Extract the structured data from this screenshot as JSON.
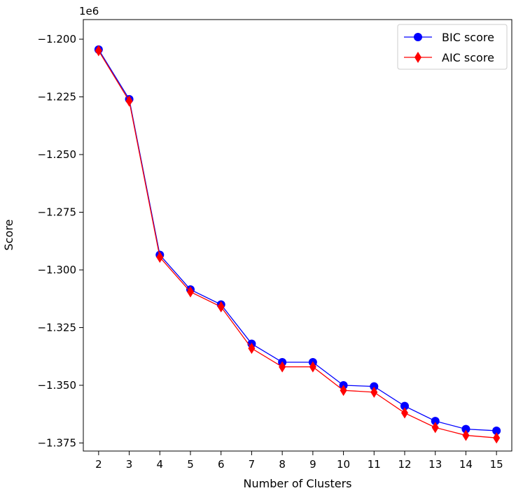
{
  "chart_data": {
    "type": "line",
    "xlabel": "Number of Clusters",
    "ylabel": "Score",
    "y_offset_label": "1e6",
    "x": [
      2,
      3,
      4,
      5,
      6,
      7,
      8,
      9,
      10,
      11,
      12,
      13,
      14,
      15
    ],
    "xlim": [
      1.5,
      15.5
    ],
    "ylim": [
      -1.3785,
      -1.1915
    ],
    "y_ticks": [
      -1.2,
      -1.225,
      -1.25,
      -1.275,
      -1.3,
      -1.325,
      -1.35,
      -1.375
    ],
    "y_tick_labels": [
      "−1.200",
      "−1.225",
      "−1.250",
      "−1.275",
      "−1.300",
      "−1.325",
      "−1.350",
      "−1.375"
    ],
    "grid": false,
    "legend_position": "top-right",
    "series": [
      {
        "name": "BIC score",
        "color": "#0000ff",
        "marker": "circle",
        "values": [
          -1.2045,
          -1.226,
          -1.2935,
          -1.3085,
          -1.315,
          -1.332,
          -1.34,
          -1.34,
          -1.35,
          -1.3505,
          -1.359,
          -1.3655,
          -1.369,
          -1.3697
        ]
      },
      {
        "name": "AIC score",
        "color": "#ff0000",
        "marker": "diamond",
        "values": [
          -1.205,
          -1.2268,
          -1.2945,
          -1.3095,
          -1.316,
          -1.334,
          -1.342,
          -1.342,
          -1.3522,
          -1.353,
          -1.362,
          -1.3683,
          -1.3717,
          -1.3728
        ]
      }
    ]
  }
}
